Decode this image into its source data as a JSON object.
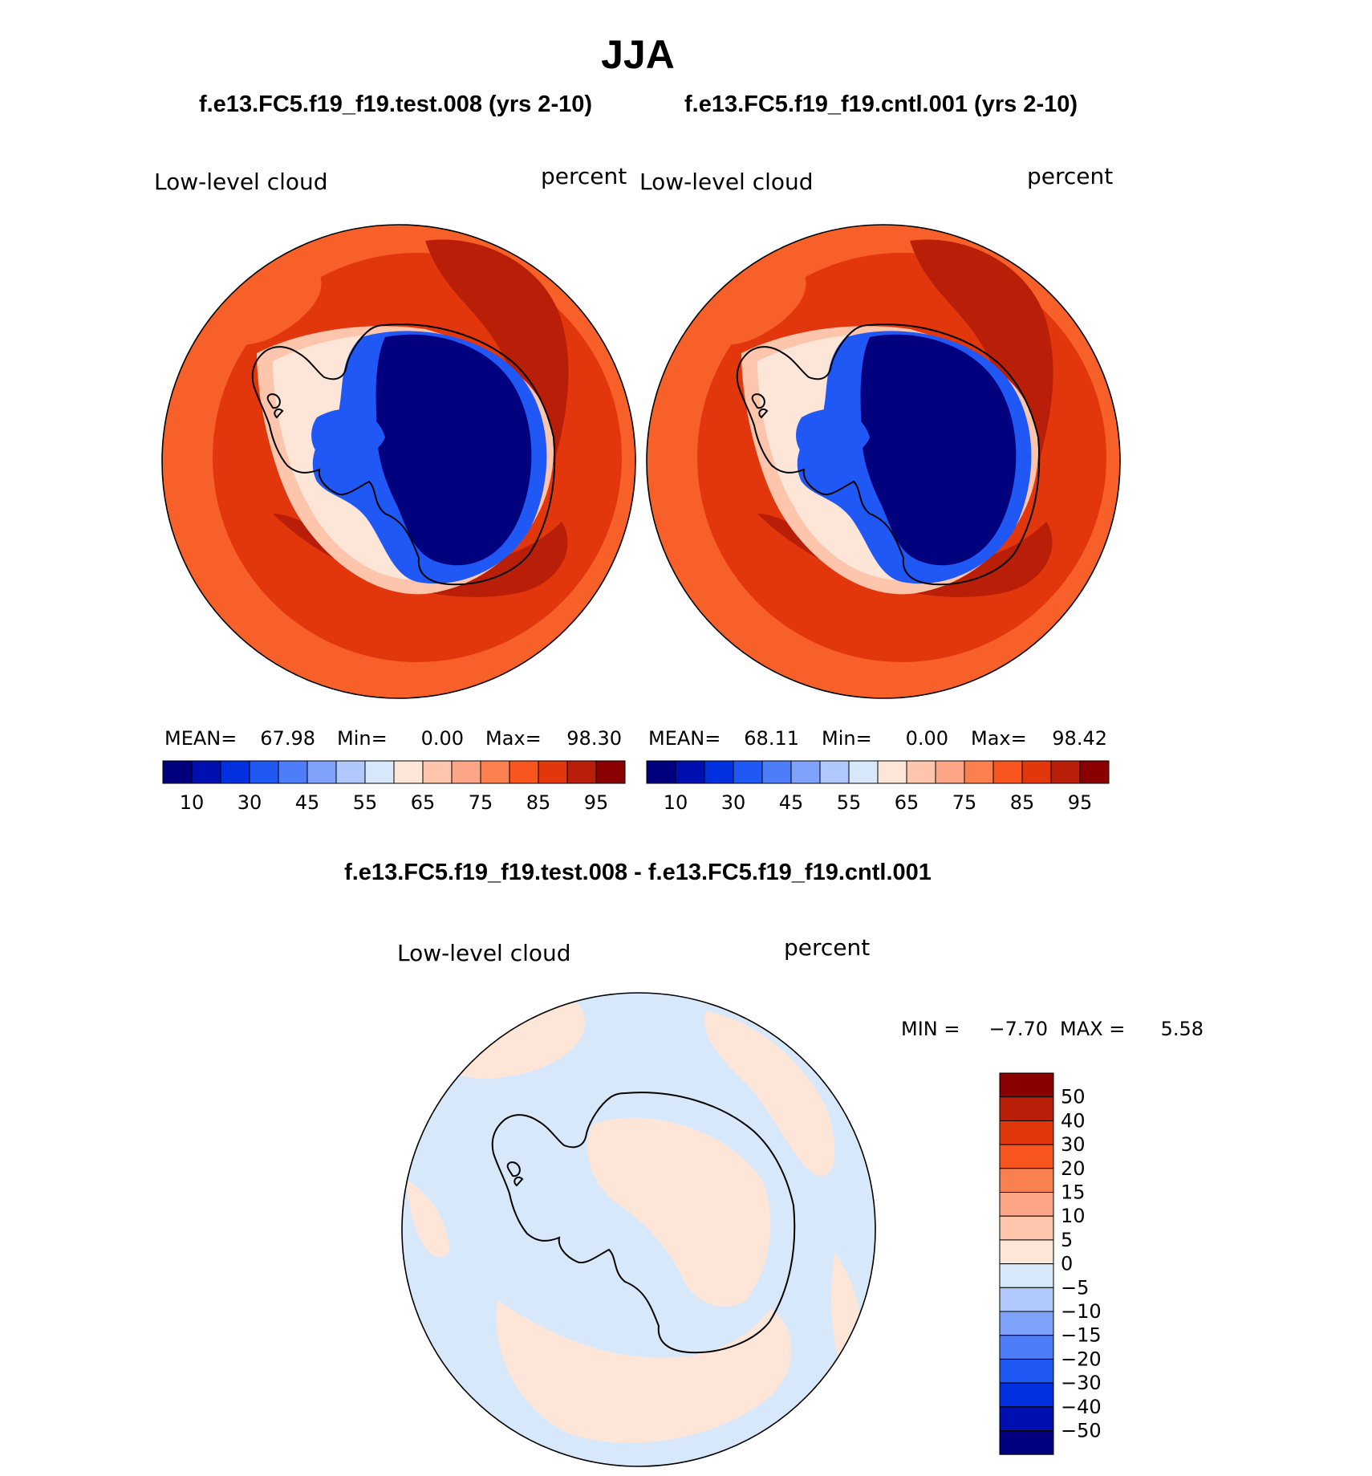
{
  "season": "JJA",
  "panels": [
    {
      "case_title": "f.e13.FC5.f19_f19.test.008 (yrs 2-10)",
      "variable": "Low-level cloud",
      "units": "percent",
      "stats": {
        "mean_label": "MEAN=",
        "mean": "67.98",
        "min_label": "Min=",
        "min": "0.00",
        "max_label": "Max=",
        "max": "98.30"
      }
    },
    {
      "case_title": "f.e13.FC5.f19_f19.cntl.001 (yrs 2-10)",
      "variable": "Low-level cloud",
      "units": "percent",
      "stats": {
        "mean_label": "MEAN=",
        "mean": "68.11",
        "min_label": "Min=",
        "min": "0.00",
        "max_label": "Max=",
        "max": "98.42"
      }
    }
  ],
  "diff_panel": {
    "title": "f.e13.FC5.f19_f19.test.008 - f.e13.FC5.f19_f19.cntl.001",
    "variable": "Low-level cloud",
    "units": "percent",
    "stats_text": {
      "min_label": "MIN =",
      "min": "−7.70",
      "max_label": "MAX =",
      "max": "5.58"
    }
  },
  "abs_colorbar": {
    "colors": [
      "#00007f",
      "#0010b0",
      "#0030e0",
      "#2058f5",
      "#4d7df8",
      "#7fa2fb",
      "#b0c8fc",
      "#d8e8fb",
      "#fde6d8",
      "#fdc6ac",
      "#fca587",
      "#fb8050",
      "#f9551e",
      "#e2370c",
      "#b81e08",
      "#8a0000"
    ],
    "labels": [
      "10",
      "30",
      "45",
      "55",
      "65",
      "75",
      "85",
      "95"
    ]
  },
  "diff_colorbar": {
    "colors_top_to_bottom": [
      "#8a0000",
      "#b81e08",
      "#e2370c",
      "#f9551e",
      "#fb8050",
      "#fca587",
      "#fdc6ac",
      "#fde6d8",
      "#d8e8fb",
      "#b0c8fc",
      "#7fa2fb",
      "#4d7df8",
      "#2058f5",
      "#0030e0",
      "#0010b0",
      "#00007f"
    ],
    "labels_top_to_bottom": [
      "50",
      "40",
      "30",
      "20",
      "15",
      "10",
      "5",
      "0",
      "−5",
      "−10",
      "−15",
      "−20",
      "−30",
      "−40",
      "−50"
    ]
  },
  "map_colors": {
    "ocean_far": "#f8602a",
    "ocean_mid": "#e2370c",
    "storm_track": "#b81e08",
    "ice_edge_light": "#fdc6ac",
    "ice_edge_pale": "#fde6d8",
    "coast_blue": "#2058f5",
    "interior": "#00007f",
    "diff_bg": "#d8e8fb",
    "diff_pos": "#fde6d8",
    "coastline": "#000000"
  }
}
